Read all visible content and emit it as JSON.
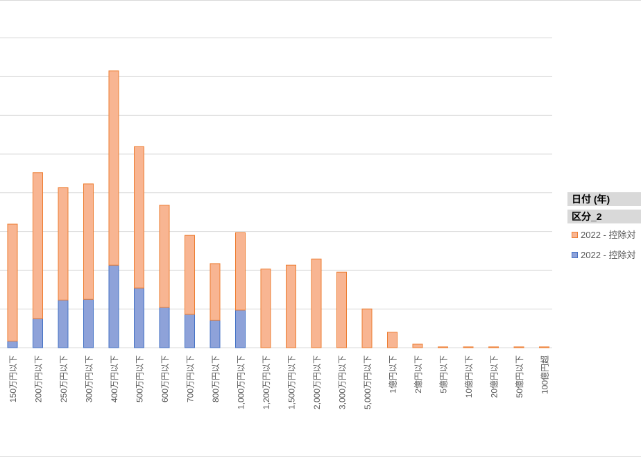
{
  "legend": {
    "field_date": "日付 (年)",
    "field_category": "区分_2",
    "series_1_label": "2022 - 控除対",
    "series_2_label": "2022 - 控除対"
  },
  "colors": {
    "orange_fill": "#f8b592",
    "orange_stroke": "#ed7d31",
    "blue_fill": "#8ea2d9",
    "blue_stroke": "#4472c4",
    "grid": "#d9d9d9",
    "axis_text": "#595959"
  },
  "chart_data": {
    "type": "bar",
    "stacked": true,
    "categories": [
      "150万円以下",
      "200万円以下",
      "250万円以下",
      "300万円以下",
      "400万円以下",
      "500万円以下",
      "600万円以下",
      "700万円以下",
      "800万円以下",
      "1,000万円以下",
      "1,200万円以下",
      "1,500万円以下",
      "2,000万円以下",
      "3,000万円以下",
      "5,000万円以下",
      "1億円以下",
      "2億円以下",
      "5億円以下",
      "10億円以下",
      "20億円以下",
      "50億円以下",
      "100億円超"
    ],
    "series": [
      {
        "name": "2022 - 控除対",
        "color": "#4472c4",
        "values": [
          0.17,
          0.75,
          1.23,
          1.25,
          2.13,
          1.54,
          1.04,
          0.86,
          0.71,
          0.97,
          0,
          0,
          0,
          0,
          0,
          0,
          0,
          0,
          0,
          0,
          0,
          0
        ]
      },
      {
        "name": "2022 - 控除対",
        "color": "#ed7d31",
        "values": [
          3.02,
          3.77,
          2.9,
          2.98,
          5.02,
          3.65,
          2.64,
          2.04,
          1.46,
          2.0,
          2.03,
          2.13,
          2.29,
          1.95,
          1.0,
          0.4,
          0.09,
          0.02,
          0.02,
          0.02,
          0.02,
          0.02
        ]
      }
    ],
    "ylim": [
      0,
      9
    ],
    "grid": true,
    "legend_position": "right"
  }
}
